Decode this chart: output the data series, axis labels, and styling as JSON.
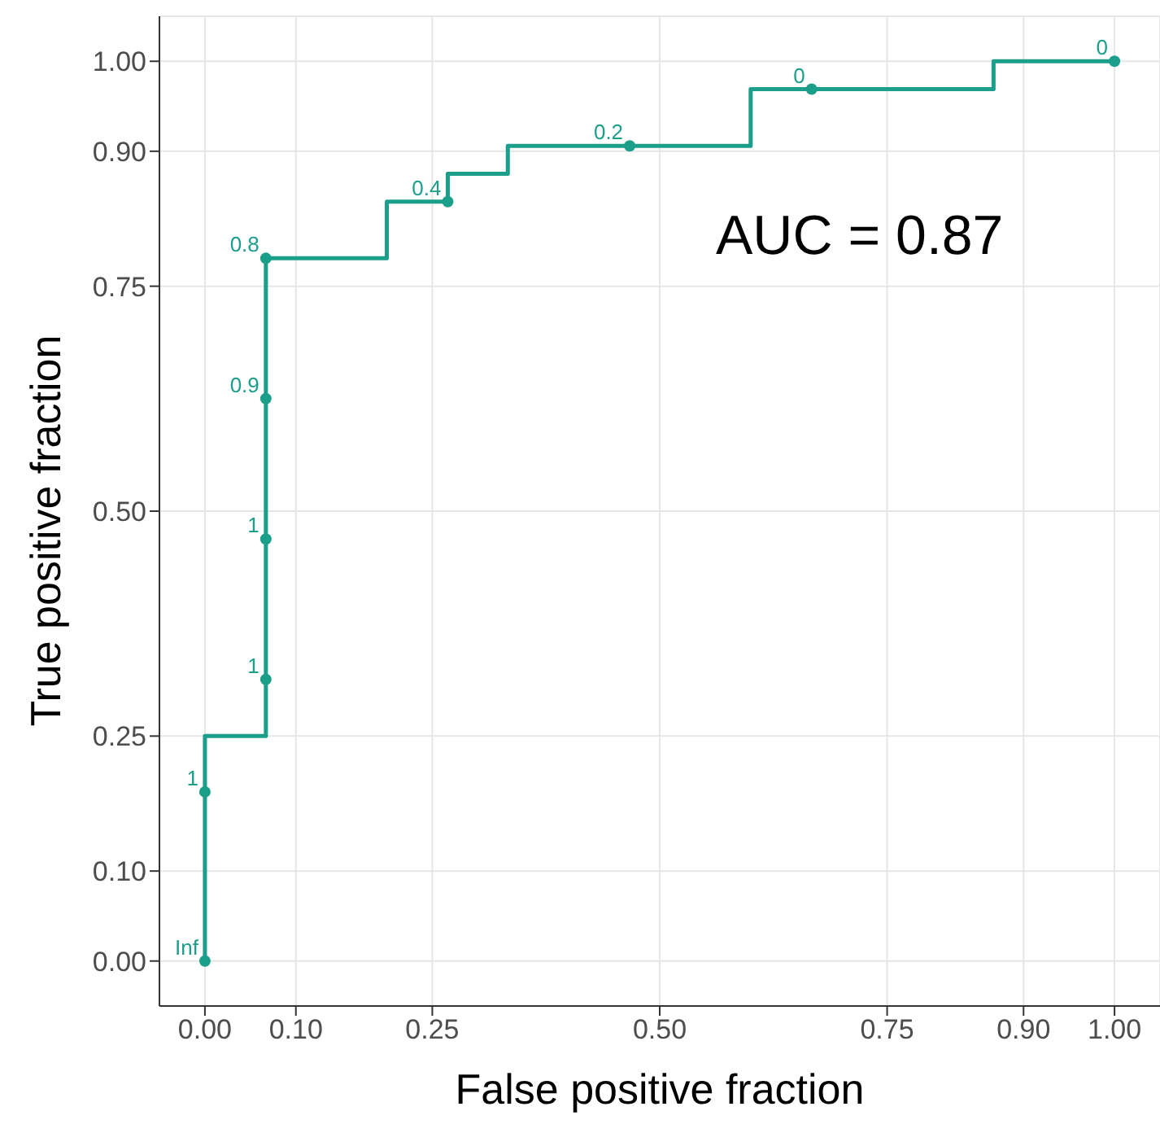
{
  "chart_data": {
    "type": "line",
    "xlabel": "False positive fraction",
    "ylabel": "True positive fraction",
    "xlim": [
      -0.05,
      1.05
    ],
    "ylim": [
      -0.05,
      1.05
    ],
    "xticks": [
      {
        "value": 0,
        "label": "0.00"
      },
      {
        "value": 0.1,
        "label": "0.10"
      },
      {
        "value": 0.25,
        "label": "0.25"
      },
      {
        "value": 0.5,
        "label": "0.50"
      },
      {
        "value": 0.75,
        "label": "0.75"
      },
      {
        "value": 0.9,
        "label": "0.90"
      },
      {
        "value": 1,
        "label": "1.00"
      }
    ],
    "yticks": [
      {
        "value": 0,
        "label": "0.00"
      },
      {
        "value": 0.1,
        "label": "0.10"
      },
      {
        "value": 0.25,
        "label": "0.25"
      },
      {
        "value": 0.5,
        "label": "0.50"
      },
      {
        "value": 0.75,
        "label": "0.75"
      },
      {
        "value": 0.9,
        "label": "0.90"
      },
      {
        "value": 1,
        "label": "1.00"
      }
    ],
    "grid": true,
    "series": [
      {
        "color": "#1b9e8a",
        "x": [
          0,
          0,
          0.067,
          0.067,
          0.2,
          0.2,
          0.267,
          0.267,
          0.333,
          0.333,
          0.6,
          0.6,
          0.867,
          0.867,
          1
        ],
        "values": [
          0,
          0.25,
          0.25,
          0.781,
          0.781,
          0.844,
          0.844,
          0.875,
          0.875,
          0.906,
          0.906,
          0.969,
          0.969,
          1,
          1
        ]
      },
      {
        "type": "scatter",
        "color": "#1b9e8a",
        "marker": "circle",
        "x": [
          0,
          0,
          0.067,
          0.067,
          0.067,
          0.067,
          0.267,
          0.467,
          0.667,
          1
        ],
        "values": [
          0,
          0.188,
          0.313,
          0.469,
          0.625,
          0.781,
          0.844,
          0.906,
          0.969,
          1
        ]
      }
    ],
    "annotations": [
      {
        "text": "Inf",
        "x": 0,
        "y": 0
      },
      {
        "text": "1",
        "x": 0,
        "y": 0.188
      },
      {
        "text": "1",
        "x": 0.067,
        "y": 0.313
      },
      {
        "text": "1",
        "x": 0.067,
        "y": 0.469
      },
      {
        "text": "0.9",
        "x": 0.067,
        "y": 0.625
      },
      {
        "text": "0.8",
        "x": 0.067,
        "y": 0.781
      },
      {
        "text": "0.4",
        "x": 0.267,
        "y": 0.844
      },
      {
        "text": "0.2",
        "x": 0.467,
        "y": 0.906
      },
      {
        "text": "0",
        "x": 0.667,
        "y": 0.969
      },
      {
        "text": "0",
        "x": 1,
        "y": 1
      },
      "AUC = 0.87"
    ]
  }
}
